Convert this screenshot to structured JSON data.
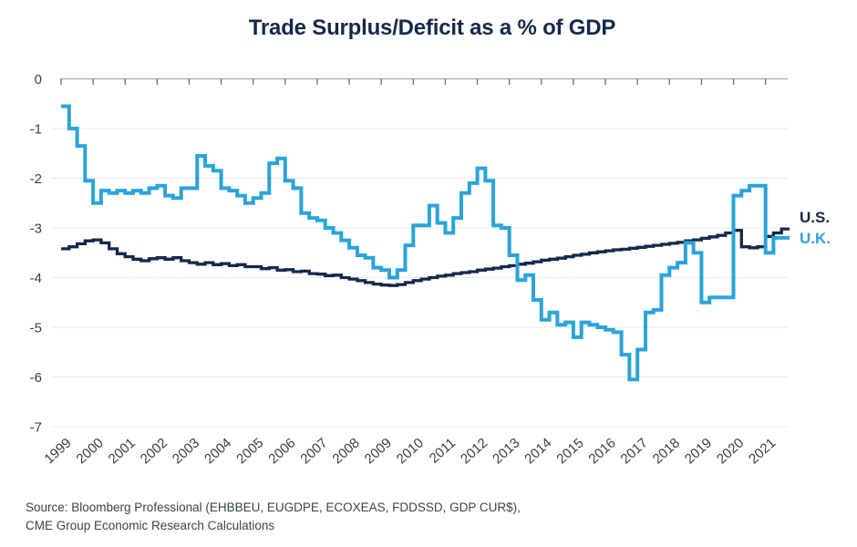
{
  "title": "Trade Surplus/Deficit as a % of GDP",
  "source": {
    "line1": "Source: Bloomberg Professional (EHBBEU, EUGDPE, ECOXEAS, FDDSSD, GDP CUR$),",
    "line2": "CME Group Economic Research Calculations"
  },
  "colors": {
    "us_navy": "#14294A",
    "uk_blue": "#2AA4DA",
    "axis_label": "#3a4045",
    "gridline": "#e8eaea"
  },
  "chart_data": {
    "type": "line",
    "step": true,
    "title": "Trade Surplus/Deficit as a % of GDP",
    "grid": "horizontal",
    "legend_position": "right",
    "x_axis": {
      "start_year": 1999,
      "frequency": "quarterly",
      "labels": [
        "1999",
        "2000",
        "2001",
        "2002",
        "2003",
        "2004",
        "2005",
        "2006",
        "2007",
        "2008",
        "2009",
        "2010",
        "2011",
        "2012",
        "2013",
        "2014",
        "2015",
        "2016",
        "2017",
        "2018",
        "2019",
        "2020",
        "2021"
      ]
    },
    "y_axis": {
      "ticks": [
        0,
        -1,
        -2,
        -3,
        -4,
        -5,
        -6,
        -7
      ],
      "range": [
        -7,
        0
      ],
      "unit": "% of GDP"
    },
    "series": [
      {
        "name": "U.S.",
        "color": "#14294A",
        "values": [
          -3.42,
          -3.38,
          -3.32,
          -3.26,
          -3.24,
          -3.3,
          -3.42,
          -3.52,
          -3.58,
          -3.63,
          -3.66,
          -3.62,
          -3.6,
          -3.63,
          -3.6,
          -3.66,
          -3.7,
          -3.73,
          -3.7,
          -3.74,
          -3.72,
          -3.76,
          -3.74,
          -3.78,
          -3.78,
          -3.82,
          -3.8,
          -3.85,
          -3.84,
          -3.88,
          -3.87,
          -3.92,
          -3.93,
          -3.96,
          -3.95,
          -4.0,
          -4.03,
          -4.06,
          -4.1,
          -4.13,
          -4.15,
          -4.16,
          -4.14,
          -4.1,
          -4.06,
          -4.03,
          -4.0,
          -3.97,
          -3.95,
          -3.92,
          -3.9,
          -3.88,
          -3.85,
          -3.83,
          -3.81,
          -3.78,
          -3.76,
          -3.73,
          -3.71,
          -3.68,
          -3.65,
          -3.63,
          -3.61,
          -3.58,
          -3.55,
          -3.53,
          -3.5,
          -3.48,
          -3.46,
          -3.44,
          -3.43,
          -3.41,
          -3.39,
          -3.37,
          -3.35,
          -3.33,
          -3.31,
          -3.29,
          -3.26,
          -3.24,
          -3.21,
          -3.18,
          -3.15,
          -3.1,
          -3.05,
          -3.38,
          -3.4,
          -3.38,
          -3.17,
          -3.1,
          -3.02
        ]
      },
      {
        "name": "U.K.",
        "color": "#2AA4DA",
        "values": [
          -0.55,
          -1.0,
          -1.35,
          -2.05,
          -2.5,
          -2.25,
          -2.3,
          -2.25,
          -2.3,
          -2.25,
          -2.3,
          -2.2,
          -2.15,
          -2.35,
          -2.4,
          -2.2,
          -2.2,
          -1.55,
          -1.75,
          -1.85,
          -2.2,
          -2.25,
          -2.35,
          -2.5,
          -2.4,
          -2.3,
          -1.7,
          -1.6,
          -2.05,
          -2.2,
          -2.7,
          -2.8,
          -2.85,
          -3.0,
          -3.1,
          -3.25,
          -3.4,
          -3.55,
          -3.6,
          -3.8,
          -3.85,
          -4.0,
          -3.85,
          -3.35,
          -2.95,
          -2.95,
          -2.55,
          -2.9,
          -3.1,
          -2.8,
          -2.3,
          -2.1,
          -1.8,
          -2.05,
          -2.95,
          -3.0,
          -3.55,
          -4.05,
          -3.95,
          -4.45,
          -4.85,
          -4.7,
          -4.95,
          -4.9,
          -5.2,
          -4.9,
          -4.95,
          -5.0,
          -5.05,
          -5.1,
          -5.55,
          -6.05,
          -5.45,
          -4.7,
          -4.65,
          -3.95,
          -3.8,
          -3.7,
          -3.3,
          -3.5,
          -4.5,
          -4.4,
          -4.4,
          -4.4,
          -2.35,
          -2.25,
          -2.15,
          -2.15,
          -3.5,
          -3.2,
          -3.2
        ]
      }
    ]
  }
}
